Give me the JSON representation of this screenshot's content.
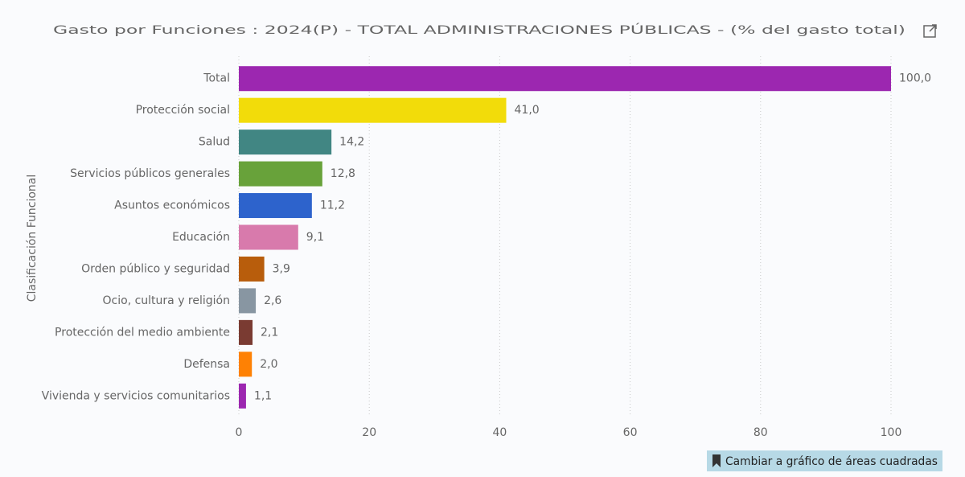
{
  "chart_data": {
    "type": "hbar",
    "title": "Gasto por Funciones : 2024(P) - TOTAL ADMINISTRACIONES PÚBLICAS - (% del gasto total)",
    "y_label": "Clasificación Funcional",
    "categories": [
      "Total",
      "Protección social",
      "Salud",
      "Servicios públicos generales",
      "Asuntos económicos",
      "Educación",
      "Orden público y seguridad",
      "Ocio, cultura y religión",
      "Protección del medio ambiente",
      "Defensa",
      "Vivienda y servicios comunitarios"
    ],
    "values": [
      100,
      41,
      14.2,
      12.8,
      11.2,
      9.1,
      3.9,
      2.6,
      2.1,
      2,
      1.1
    ],
    "value_labels": [
      "100,0",
      "41,0",
      "14,2",
      "12,8",
      "11,2",
      "9,1",
      "3,9",
      "2,6",
      "2,1",
      "2,0",
      "1,1"
    ],
    "colors": [
      "#9c27b0",
      "#f2dc0a",
      "#418683",
      "#68a23a",
      "#2d63cc",
      "#d87aac",
      "#b85d0c",
      "#8896a2",
      "#7a3b32",
      "#fe8104",
      "#9c27b0"
    ],
    "xlim": [
      0,
      100
    ],
    "xticks": [
      0,
      20,
      40,
      60,
      80,
      100
    ],
    "grid": true
  },
  "ui": {
    "button": "Cambiar a gráfico de áreas cuadradas"
  }
}
